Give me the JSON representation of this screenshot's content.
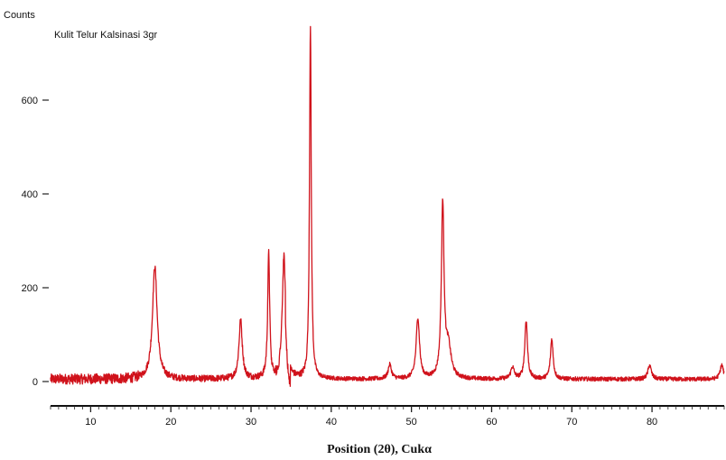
{
  "chart_data": {
    "type": "line",
    "ylabel": "Counts",
    "xlabel": "Position (2θ), Cukα",
    "xlim": [
      5,
      89
    ],
    "ylim": [
      -50,
      750
    ],
    "xticks": [
      10,
      20,
      30,
      40,
      50,
      60,
      70,
      80
    ],
    "yticks": [
      0,
      200,
      400,
      600
    ],
    "grid": false,
    "legend_position": "top-left",
    "series": [
      {
        "name": "Kulit Telur Kalsinasi 3gr",
        "color": "#d0121b",
        "baseline": 5,
        "peaks": [
          {
            "x": 18.0,
            "y": 240,
            "w": 0.35
          },
          {
            "x": 28.7,
            "y": 125,
            "w": 0.25
          },
          {
            "x": 32.2,
            "y": 265,
            "w": 0.15
          },
          {
            "x": 34.1,
            "y": 260,
            "w": 0.25
          },
          {
            "x": 37.4,
            "y": 750,
            "w": 0.13
          },
          {
            "x": 47.3,
            "y": 30,
            "w": 0.25
          },
          {
            "x": 50.8,
            "y": 130,
            "w": 0.25
          },
          {
            "x": 53.9,
            "y": 370,
            "w": 0.2
          },
          {
            "x": 54.6,
            "y": 65,
            "w": 0.4
          },
          {
            "x": 62.6,
            "y": 25,
            "w": 0.25
          },
          {
            "x": 64.3,
            "y": 125,
            "w": 0.2
          },
          {
            "x": 67.5,
            "y": 85,
            "w": 0.2
          },
          {
            "x": 79.7,
            "y": 30,
            "w": 0.25
          },
          {
            "x": 88.7,
            "y": 30,
            "w": 0.25
          }
        ]
      }
    ]
  }
}
